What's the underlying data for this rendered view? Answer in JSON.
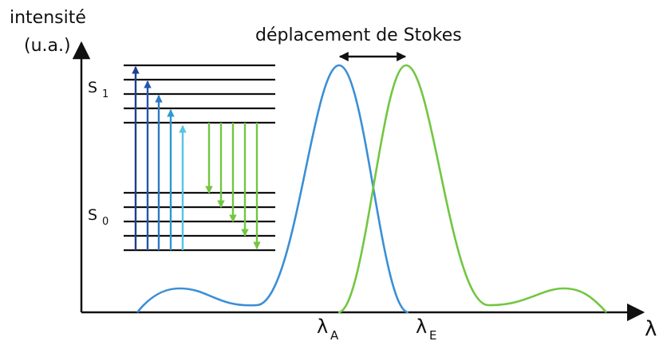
{
  "labels": {
    "y_axis_line1": "intensité",
    "y_axis_line2": "(u.a.)",
    "x_axis": "λ",
    "stokes": "déplacement de Stokes",
    "s1_main": "S",
    "s1_sub": "1",
    "s0_main": "S",
    "s0_sub": "0",
    "lambda_a_main": "λ",
    "lambda_a_sub": "A",
    "lambda_e_main": "λ",
    "lambda_e_sub": "E"
  },
  "colors": {
    "absorption": "#3b8fd6",
    "emission": "#72c641",
    "axes": "#111111",
    "levels": "#111111",
    "stokes_arrow": "#111111",
    "absorption_arrows": [
      "#1d3f8f",
      "#2456b0",
      "#2e78c4",
      "#2f98d2",
      "#56c4e4"
    ],
    "emission_arrows": "#72c641"
  }
}
